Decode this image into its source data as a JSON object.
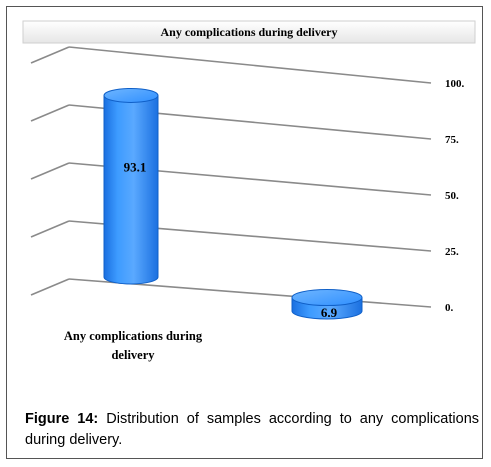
{
  "chart_data": {
    "type": "bar",
    "title": "Any complications during delivery",
    "categories": [
      "Any complications during delivery",
      ""
    ],
    "category_label_lines": [
      "Any complications during",
      "delivery"
    ],
    "values": [
      93.1,
      6.9
    ],
    "value_labels": [
      "93.1",
      "6.9"
    ],
    "tick_labels": [
      "0.",
      "25.",
      "50.",
      "75.",
      "100."
    ],
    "ylim": [
      0,
      100
    ],
    "grid": true,
    "bar_color": "#2f8fff",
    "bar_edge_color": "#1060c8"
  },
  "caption": {
    "label": "Figure 14:",
    "text": " Distribution of samples according to any complications during delivery."
  }
}
